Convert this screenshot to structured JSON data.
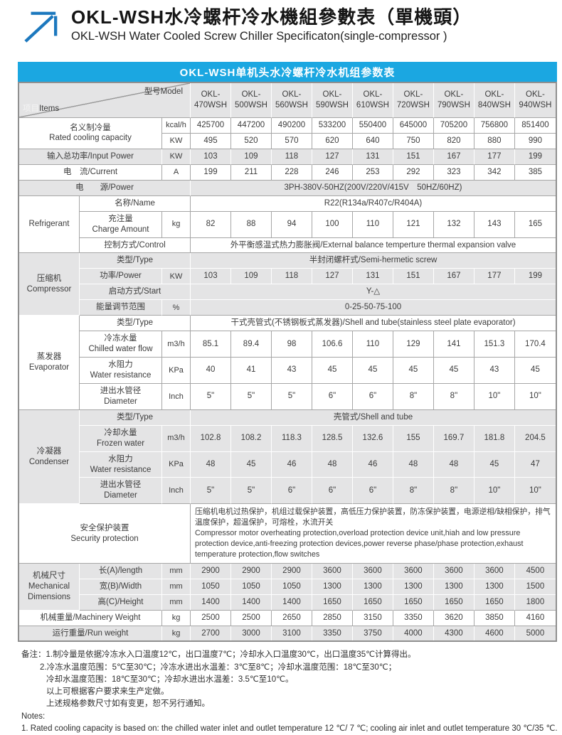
{
  "header": {
    "title_cn": "OKL-WSH水冷螺杆冷水機組參數表（單機頭）",
    "title_en": "OKL-WSH Water Cooled Screw Chiller Specificaton(single-compressor )"
  },
  "banner": {
    "text": "OKL-WSH单机头水冷螺杆冷水机组参数表"
  },
  "colors": {
    "banner_bg": "#1ba7e1",
    "arrow_blue": "#1c78be",
    "row_gray": "#e4e4e5",
    "border_gray": "#a6a6a6"
  },
  "icons": {
    "logo": "up-right-arrow-icon"
  },
  "table": {
    "rows": [
      {
        "bg": "gray",
        "header": true,
        "cells": [
          {
            "cs": 3,
            "corner": {
              "items_light": "项目",
              "items": "Items",
              "model": "型号Model"
            },
            "name": "table-corner-cell"
          },
          {
            "t": "OKL-\n470WSH",
            "cls": "model",
            "name": "model-header"
          },
          {
            "t": "OKL-\n500WSH",
            "cls": "model",
            "name": "model-header"
          },
          {
            "t": "OKL-\n560WSH",
            "cls": "model",
            "name": "model-header"
          },
          {
            "t": "OKL-\n590WSH",
            "cls": "model",
            "name": "model-header"
          },
          {
            "t": "OKL-\n610WSH",
            "cls": "model",
            "name": "model-header"
          },
          {
            "t": "OKL-\n720WSH",
            "cls": "model",
            "name": "model-header"
          },
          {
            "t": "OKL-\n790WSH",
            "cls": "model",
            "name": "model-header"
          },
          {
            "t": "OKL-\n840WSH",
            "cls": "model",
            "name": "model-header"
          },
          {
            "t": "OKL-\n940WSH",
            "cls": "model",
            "name": "model-header"
          }
        ]
      },
      {
        "bg": "white",
        "cells": [
          {
            "t": "名义制冷量\nRated cooling capacity",
            "cs": 2,
            "rs": 2,
            "cls": "label",
            "name": "row-label-rated-cooling-capacity"
          },
          {
            "t": "kcal/h",
            "cls": "unit",
            "name": "unit-cell"
          },
          {
            "t": "425700"
          },
          {
            "t": "447200"
          },
          {
            "t": "490200"
          },
          {
            "t": "533200"
          },
          {
            "t": "550400"
          },
          {
            "t": "645000"
          },
          {
            "t": "705200"
          },
          {
            "t": "756800"
          },
          {
            "t": "851400"
          }
        ]
      },
      {
        "bg": "white",
        "cells": [
          {
            "t": "KW",
            "cls": "unit",
            "name": "unit-cell"
          },
          {
            "t": "495"
          },
          {
            "t": "520"
          },
          {
            "t": "570"
          },
          {
            "t": "620"
          },
          {
            "t": "640"
          },
          {
            "t": "750"
          },
          {
            "t": "820"
          },
          {
            "t": "880"
          },
          {
            "t": "990"
          }
        ]
      },
      {
        "bg": "gray",
        "cells": [
          {
            "t": "输入总功率/Input Power",
            "cs": 2,
            "cls": "label",
            "name": "row-label-input-power"
          },
          {
            "t": "KW",
            "cls": "unit",
            "name": "unit-cell"
          },
          {
            "t": "103"
          },
          {
            "t": "109"
          },
          {
            "t": "118"
          },
          {
            "t": "127"
          },
          {
            "t": "131"
          },
          {
            "t": "151"
          },
          {
            "t": "167"
          },
          {
            "t": "177"
          },
          {
            "t": "199"
          }
        ]
      },
      {
        "bg": "white",
        "cells": [
          {
            "t": "电　流/Current",
            "cs": 2,
            "cls": "label",
            "name": "row-label-current"
          },
          {
            "t": "A",
            "cls": "unit",
            "name": "unit-cell"
          },
          {
            "t": "199"
          },
          {
            "t": "211"
          },
          {
            "t": "228"
          },
          {
            "t": "246"
          },
          {
            "t": "253"
          },
          {
            "t": "292"
          },
          {
            "t": "323"
          },
          {
            "t": "342"
          },
          {
            "t": "385"
          }
        ]
      },
      {
        "bg": "gray",
        "cells": [
          {
            "t": "电　　源/Power",
            "cs": 3,
            "cls": "label",
            "name": "row-label-power-supply"
          },
          {
            "t": "3PH-380V-50HZ(200V/220V/415V　50HZ/60HZ)",
            "cs": 9,
            "name": "merged-value"
          }
        ]
      },
      {
        "bg": "white",
        "cells": [
          {
            "t": "Refrigerant",
            "rs": 3,
            "cls": "section",
            "name": "section-refrigerant"
          },
          {
            "t": "名称/Name",
            "cs": 2,
            "cls": "label",
            "name": "row-label-name"
          },
          {
            "t": "R22(R134a/R407c/R404A)",
            "cs": 9,
            "name": "merged-value"
          }
        ]
      },
      {
        "bg": "white",
        "cells": [
          {
            "t": "充注量\nCharge Amount",
            "cls": "label",
            "name": "row-label-charge-amount"
          },
          {
            "t": "kg",
            "cls": "unit",
            "name": "unit-cell"
          },
          {
            "t": "82"
          },
          {
            "t": "88"
          },
          {
            "t": "94"
          },
          {
            "t": "100"
          },
          {
            "t": "110"
          },
          {
            "t": "121"
          },
          {
            "t": "132"
          },
          {
            "t": "143"
          },
          {
            "t": "165"
          }
        ]
      },
      {
        "bg": "white",
        "cells": [
          {
            "t": "控制方式/Control",
            "cs": 2,
            "cls": "label",
            "name": "row-label-control"
          },
          {
            "t": "外平衡感温式热力膨胀阀/External balance temperture thermal expansion valve",
            "cs": 9,
            "name": "merged-value"
          }
        ]
      },
      {
        "bg": "gray",
        "cells": [
          {
            "t": "压缩机\nCompressor",
            "rs": 4,
            "cls": "section",
            "name": "section-compressor"
          },
          {
            "t": "类型/Type",
            "cs": 2,
            "cls": "label",
            "name": "row-label-type"
          },
          {
            "t": "半封闭螺杆式/Semi-hermetic screw",
            "cs": 9,
            "name": "merged-value"
          }
        ]
      },
      {
        "bg": "gray",
        "cells": [
          {
            "t": "功率/Power",
            "cls": "label",
            "name": "row-label-compressor-power"
          },
          {
            "t": "KW",
            "cls": "unit",
            "name": "unit-cell"
          },
          {
            "t": "103"
          },
          {
            "t": "109"
          },
          {
            "t": "118"
          },
          {
            "t": "127"
          },
          {
            "t": "131"
          },
          {
            "t": "151"
          },
          {
            "t": "167"
          },
          {
            "t": "177"
          },
          {
            "t": "199"
          }
        ]
      },
      {
        "bg": "gray",
        "cells": [
          {
            "t": "启动方式/Start",
            "cs": 2,
            "cls": "label",
            "name": "row-label-start"
          },
          {
            "t": "Y-△",
            "cs": 9,
            "name": "merged-value"
          }
        ]
      },
      {
        "bg": "gray",
        "cells": [
          {
            "t": "能量调节范围",
            "cls": "label",
            "name": "row-label-energy-range"
          },
          {
            "t": "%",
            "cls": "unit",
            "name": "unit-cell"
          },
          {
            "t": "0-25-50-75-100",
            "cs": 9,
            "name": "merged-value"
          }
        ]
      },
      {
        "bg": "white",
        "cells": [
          {
            "t": "蒸发器\nEvaporator",
            "rs": 4,
            "cls": "section",
            "name": "section-evaporator"
          },
          {
            "t": "类型/Type",
            "cs": 2,
            "cls": "label",
            "name": "row-label-type"
          },
          {
            "t": "干式壳管式(不锈钢板式蒸发器)/Shell and tube(stainless steel plate evaporator)",
            "cs": 9,
            "name": "merged-value"
          }
        ]
      },
      {
        "bg": "white",
        "cells": [
          {
            "t": "冷冻水量\nChilled water flow",
            "cls": "label",
            "name": "row-label-chilled-water-flow"
          },
          {
            "t": "m3/h",
            "cls": "unit",
            "name": "unit-cell"
          },
          {
            "t": "85.1"
          },
          {
            "t": "89.4"
          },
          {
            "t": "98"
          },
          {
            "t": "106.6"
          },
          {
            "t": "110"
          },
          {
            "t": "129"
          },
          {
            "t": "141"
          },
          {
            "t": "151.3"
          },
          {
            "t": "170.4"
          }
        ]
      },
      {
        "bg": "white",
        "cells": [
          {
            "t": "水阻力\nWater resistance",
            "cls": "label",
            "name": "row-label-water-resistance"
          },
          {
            "t": "KPa",
            "cls": "unit",
            "name": "unit-cell"
          },
          {
            "t": "40"
          },
          {
            "t": "41"
          },
          {
            "t": "43"
          },
          {
            "t": "45"
          },
          {
            "t": "45"
          },
          {
            "t": "45"
          },
          {
            "t": "45"
          },
          {
            "t": "43"
          },
          {
            "t": "45"
          }
        ]
      },
      {
        "bg": "white",
        "cells": [
          {
            "t": "进出水管径\nDiameter",
            "cls": "label",
            "name": "row-label-diameter"
          },
          {
            "t": "Inch",
            "cls": "unit",
            "name": "unit-cell"
          },
          {
            "t": "5\""
          },
          {
            "t": "5\""
          },
          {
            "t": "5\""
          },
          {
            "t": "6\""
          },
          {
            "t": "6\""
          },
          {
            "t": "8\""
          },
          {
            "t": "8\""
          },
          {
            "t": "10\""
          },
          {
            "t": "10\""
          }
        ]
      },
      {
        "bg": "gray",
        "cells": [
          {
            "t": "冷凝器\nCondenser",
            "rs": 4,
            "cls": "section",
            "name": "section-condenser"
          },
          {
            "t": "类型/Type",
            "cs": 2,
            "cls": "label",
            "name": "row-label-type"
          },
          {
            "t": "壳管式/Shell and tube",
            "cs": 9,
            "name": "merged-value"
          }
        ]
      },
      {
        "bg": "gray",
        "cells": [
          {
            "t": "冷却水量\nFrozen water",
            "cls": "label",
            "name": "row-label-frozen-water"
          },
          {
            "t": "m3/h",
            "cls": "unit",
            "name": "unit-cell"
          },
          {
            "t": "102.8"
          },
          {
            "t": "108.2"
          },
          {
            "t": "118.3"
          },
          {
            "t": "128.5"
          },
          {
            "t": "132.6"
          },
          {
            "t": "155"
          },
          {
            "t": "169.7"
          },
          {
            "t": "181.8"
          },
          {
            "t": "204.5"
          }
        ]
      },
      {
        "bg": "gray",
        "cells": [
          {
            "t": "水阻力\nWater resistance",
            "cls": "label",
            "name": "row-label-water-resistance"
          },
          {
            "t": "KPa",
            "cls": "unit",
            "name": "unit-cell"
          },
          {
            "t": "48"
          },
          {
            "t": "45"
          },
          {
            "t": "46"
          },
          {
            "t": "48"
          },
          {
            "t": "46"
          },
          {
            "t": "48"
          },
          {
            "t": "48"
          },
          {
            "t": "45"
          },
          {
            "t": "47"
          }
        ]
      },
      {
        "bg": "gray",
        "cells": [
          {
            "t": "进出水管径\nDiameter",
            "cls": "label",
            "name": "row-label-diameter"
          },
          {
            "t": "Inch",
            "cls": "unit",
            "name": "unit-cell"
          },
          {
            "t": "5\""
          },
          {
            "t": "5\""
          },
          {
            "t": "6\""
          },
          {
            "t": "6\""
          },
          {
            "t": "6\""
          },
          {
            "t": "8\""
          },
          {
            "t": "8\""
          },
          {
            "t": "10\""
          },
          {
            "t": "10\""
          }
        ]
      },
      {
        "bg": "white",
        "cells": [
          {
            "t": "安全保护装置\nSecurity protection",
            "cs": 3,
            "cls": "label",
            "name": "row-label-security-protection"
          },
          {
            "t": "压缩机电机过热保护，机组过载保护装置，高低压力保护装置，防冻保护装置，电源逆相/缺相保护，排气温度保护，超温保护，可熔栓，水流开关\nCompressor motor overheating protection,overload protection device unit,hiah and low pressure protection device,anti-freezing protection devices,power reverse phase/phase protection,exhaust temperature protection,flow switches",
            "cs": 9,
            "cls": "security",
            "name": "security-text"
          }
        ]
      },
      {
        "bg": "gray",
        "cells": [
          {
            "t": "机械尺寸\nMechanical\nDimensions",
            "rs": 3,
            "cls": "section",
            "name": "section-mechanical-dimensions"
          },
          {
            "t": "长(A)/length",
            "cls": "label",
            "name": "row-label-length"
          },
          {
            "t": "mm",
            "cls": "unit",
            "name": "unit-cell"
          },
          {
            "t": "2900"
          },
          {
            "t": "2900"
          },
          {
            "t": "2900"
          },
          {
            "t": "3600"
          },
          {
            "t": "3600"
          },
          {
            "t": "3600"
          },
          {
            "t": "3600"
          },
          {
            "t": "3600"
          },
          {
            "t": "4500"
          }
        ]
      },
      {
        "bg": "gray",
        "cells": [
          {
            "t": "宽(B)/Width",
            "cls": "label",
            "name": "row-label-width"
          },
          {
            "t": "mm",
            "cls": "unit",
            "name": "unit-cell"
          },
          {
            "t": "1050"
          },
          {
            "t": "1050"
          },
          {
            "t": "1050"
          },
          {
            "t": "1300"
          },
          {
            "t": "1300"
          },
          {
            "t": "1300"
          },
          {
            "t": "1300"
          },
          {
            "t": "1300"
          },
          {
            "t": "1500"
          }
        ]
      },
      {
        "bg": "gray",
        "cells": [
          {
            "t": "高(C)/Height",
            "cls": "label",
            "name": "row-label-height"
          },
          {
            "t": "mm",
            "cls": "unit",
            "name": "unit-cell"
          },
          {
            "t": "1400"
          },
          {
            "t": "1400"
          },
          {
            "t": "1400"
          },
          {
            "t": "1650"
          },
          {
            "t": "1650"
          },
          {
            "t": "1650"
          },
          {
            "t": "1650"
          },
          {
            "t": "1650"
          },
          {
            "t": "1800"
          }
        ]
      },
      {
        "bg": "white",
        "cells": [
          {
            "t": "机械重量/Machinery Weight",
            "cs": 2,
            "cls": "label",
            "name": "row-label-machinery-weight"
          },
          {
            "t": "kg",
            "cls": "unit",
            "name": "unit-cell"
          },
          {
            "t": "2500"
          },
          {
            "t": "2500"
          },
          {
            "t": "2650"
          },
          {
            "t": "2850"
          },
          {
            "t": "3150"
          },
          {
            "t": "3350"
          },
          {
            "t": "3620"
          },
          {
            "t": "3850"
          },
          {
            "t": "4160"
          }
        ]
      },
      {
        "bg": "gray",
        "cells": [
          {
            "t": "运行重量/Run weight",
            "cs": 2,
            "cls": "label",
            "name": "row-label-run-weight"
          },
          {
            "t": "kg",
            "cls": "unit",
            "name": "unit-cell"
          },
          {
            "t": "2700"
          },
          {
            "t": "3000"
          },
          {
            "t": "3100"
          },
          {
            "t": "3350"
          },
          {
            "t": "3750"
          },
          {
            "t": "4000"
          },
          {
            "t": "4300"
          },
          {
            "t": "4600"
          },
          {
            "t": "5000"
          }
        ]
      }
    ]
  },
  "notes": {
    "lines": [
      "备注：1.制冷量是依据冷冻水入口温度12℃，出口温度7℃；冷却水入口温度30℃，出口温度35℃计算得出。",
      "2.冷冻水温度范围：5℃至30℃；冷冻水进出水温差：3℃至8℃；冷却水温度范围：18℃至30℃；",
      "冷却水温度范围：18℃至30℃；冷却水进出水温差：3.5℃至10℃。",
      "以上可根据客户要求来生产定做。",
      "上述规格参数尺寸如有变更，恕不另行通知。",
      "Notes:",
      "1. Rated cooling capacity is based on: the chilled water inlet and outlet temperature 12 ℃/ 7 ℃; cooling air inlet and outlet temperature 30 ℃/35 ℃."
    ]
  }
}
